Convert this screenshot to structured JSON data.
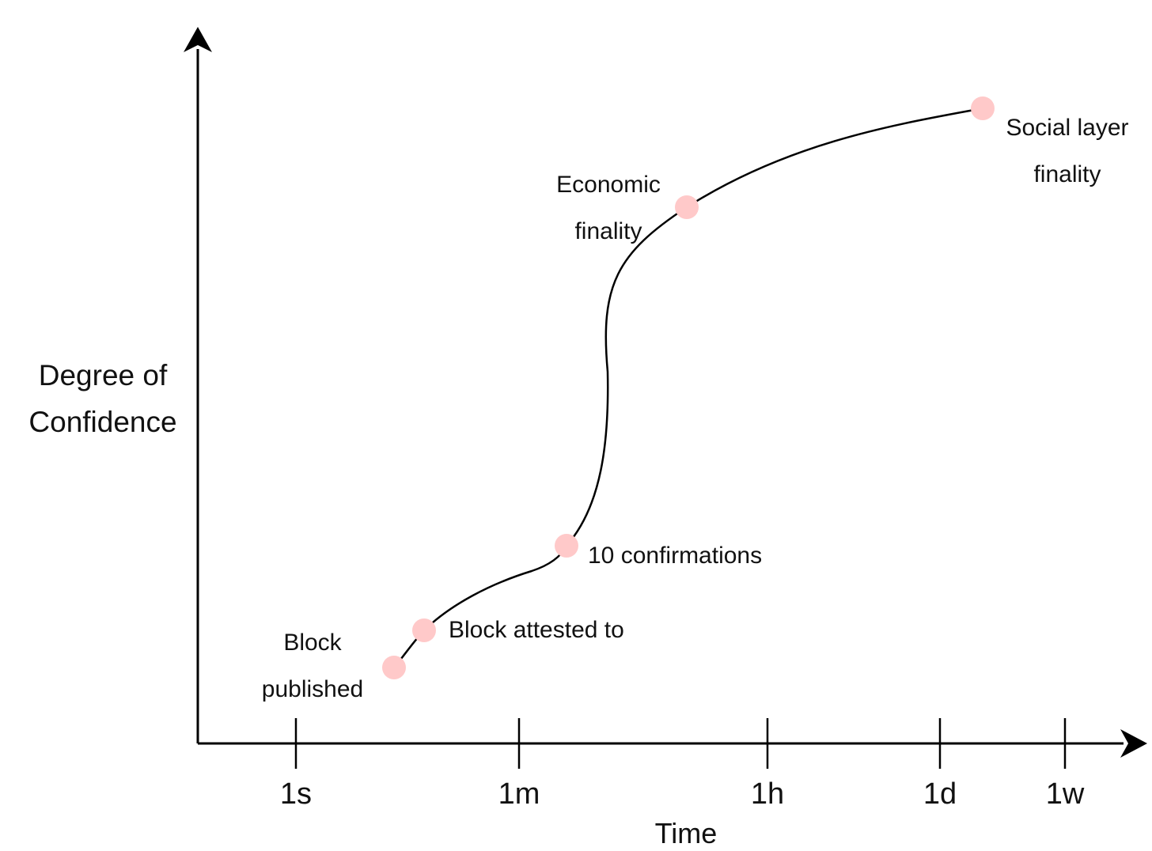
{
  "chart_data": {
    "type": "line",
    "ylabel_lines": [
      "Degree of",
      "Confidence"
    ],
    "xlabel": "Time",
    "x_ticks": [
      "1s",
      "1m",
      "1h",
      "1d",
      "1w"
    ],
    "milestones": [
      {
        "label_lines": [
          "Block",
          "published"
        ]
      },
      {
        "label_lines": [
          "Block attested to"
        ]
      },
      {
        "label_lines": [
          "10 confirmations"
        ]
      },
      {
        "label_lines": [
          "Economic",
          "finality"
        ]
      },
      {
        "label_lines": [
          "Social layer",
          "finality"
        ]
      }
    ],
    "colors": {
      "axis": "#000000",
      "curve": "#000000",
      "milestone_point": "#ffc9c9"
    }
  }
}
